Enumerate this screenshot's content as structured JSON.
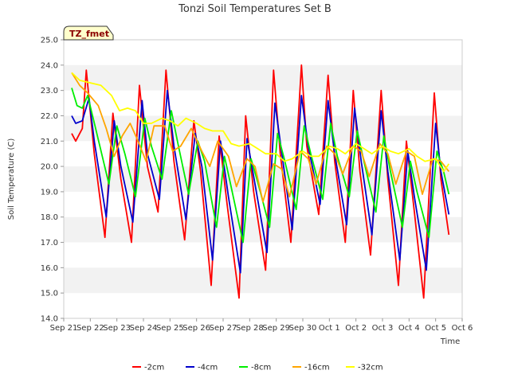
{
  "chart_data": {
    "type": "line",
    "title": "Tonzi Soil Temperatures Set B",
    "xlabel": "Time",
    "ylabel": "Soil Temperature (C)",
    "badge": "TZ_fmet",
    "ylim": [
      14.0,
      25.0
    ],
    "yticks": [
      "14.0",
      "15.0",
      "16.0",
      "17.0",
      "18.0",
      "19.0",
      "20.0",
      "21.0",
      "22.0",
      "23.0",
      "24.0",
      "25.0"
    ],
    "xticks": [
      "Sep 21",
      "Sep 22",
      "Sep 23",
      "Sep 24",
      "Sep 25",
      "Sep 26",
      "Sep 27",
      "Sep 28",
      "Sep 29",
      "Sep 30",
      "Oct 1",
      "Oct 2",
      "Oct 3",
      "Oct 4",
      "Oct 5",
      "Oct 6"
    ],
    "xrange_days": [
      0,
      15
    ],
    "grid": "horizontal bands",
    "legend_position": "bottom",
    "colors": {
      "-2cm": "#ff0000",
      "-4cm": "#0000cc",
      "-8cm": "#00ee00",
      "-16cm": "#ffa500",
      "-32cm": "#ffff00"
    },
    "series": [
      {
        "name": "-2cm",
        "color": "#ff0000",
        "x": [
          0.3,
          0.45,
          0.7,
          0.85,
          1.15,
          1.55,
          1.85,
          2.15,
          2.55,
          2.85,
          3.15,
          3.55,
          3.85,
          4.15,
          4.55,
          4.9,
          5.15,
          5.55,
          5.85,
          6.15,
          6.6,
          6.85,
          7.15,
          7.6,
          7.9,
          8.15,
          8.55,
          8.95,
          9.15,
          9.6,
          9.95,
          10.2,
          10.6,
          10.9,
          11.15,
          11.55,
          11.95,
          12.2,
          12.6,
          12.9,
          13.2,
          13.55,
          13.95,
          14.2,
          14.5
        ],
        "y": [
          21.3,
          21.0,
          21.5,
          23.8,
          20.5,
          17.2,
          22.1,
          19.5,
          17.0,
          23.2,
          20.0,
          18.2,
          23.8,
          20.2,
          17.1,
          21.8,
          19.8,
          15.3,
          21.2,
          18.5,
          14.8,
          22.0,
          19.0,
          15.9,
          23.8,
          20.5,
          17.0,
          24.0,
          20.8,
          18.1,
          23.6,
          20.2,
          17.0,
          23.0,
          19.8,
          16.5,
          23.0,
          19.5,
          15.3,
          21.0,
          18.2,
          14.8,
          22.9,
          19.5,
          17.3
        ]
      },
      {
        "name": "-4cm",
        "color": "#0000cc",
        "x": [
          0.3,
          0.45,
          0.7,
          0.95,
          1.15,
          1.6,
          1.9,
          2.15,
          2.6,
          2.95,
          3.15,
          3.6,
          3.9,
          4.15,
          4.6,
          4.95,
          5.2,
          5.6,
          5.9,
          6.2,
          6.65,
          6.9,
          7.2,
          7.65,
          7.95,
          8.2,
          8.6,
          8.95,
          9.2,
          9.65,
          9.95,
          10.2,
          10.65,
          10.95,
          11.2,
          11.6,
          11.95,
          12.2,
          12.65,
          12.95,
          13.2,
          13.65,
          14.0,
          14.2,
          14.5
        ],
        "y": [
          22.0,
          21.7,
          21.8,
          22.7,
          21.0,
          18.0,
          21.8,
          20.0,
          17.8,
          22.6,
          20.5,
          18.7,
          23.0,
          20.8,
          17.9,
          21.3,
          20.0,
          16.3,
          21.0,
          18.8,
          15.8,
          21.1,
          19.3,
          16.6,
          22.5,
          20.6,
          17.5,
          22.8,
          20.8,
          18.5,
          22.6,
          20.5,
          17.7,
          22.3,
          20.2,
          17.3,
          22.2,
          19.8,
          16.3,
          20.6,
          18.8,
          15.9,
          21.7,
          19.8,
          18.1
        ]
      },
      {
        "name": "-8cm",
        "color": "#00ee00",
        "x": [
          0.3,
          0.5,
          0.7,
          0.9,
          1.2,
          1.7,
          2.0,
          2.3,
          2.7,
          3.05,
          3.3,
          3.7,
          4.05,
          4.3,
          4.7,
          5.05,
          5.3,
          5.75,
          6.05,
          6.3,
          6.75,
          7.05,
          7.3,
          7.75,
          8.05,
          8.3,
          8.75,
          9.05,
          9.3,
          9.75,
          10.05,
          10.3,
          10.75,
          11.05,
          11.3,
          11.75,
          12.05,
          12.3,
          12.75,
          13.05,
          13.3,
          13.75,
          14.05,
          14.3,
          14.5
        ],
        "y": [
          23.1,
          22.4,
          22.3,
          22.8,
          21.5,
          19.3,
          21.6,
          20.5,
          18.8,
          21.9,
          20.8,
          19.5,
          22.2,
          20.9,
          18.9,
          21.0,
          20.2,
          17.6,
          20.4,
          19.2,
          17.0,
          20.3,
          19.4,
          17.6,
          21.3,
          20.3,
          18.3,
          21.6,
          20.5,
          18.7,
          21.7,
          20.4,
          18.8,
          21.4,
          20.2,
          18.2,
          21.2,
          19.8,
          17.6,
          20.2,
          19.0,
          17.2,
          20.6,
          19.8,
          18.9
        ]
      },
      {
        "name": "-16cm",
        "color": "#ffa500",
        "x": [
          0.3,
          0.6,
          0.9,
          1.3,
          1.6,
          1.9,
          2.2,
          2.5,
          2.8,
          3.1,
          3.4,
          3.8,
          4.1,
          4.4,
          4.8,
          5.2,
          5.5,
          5.8,
          6.2,
          6.5,
          6.9,
          7.2,
          7.5,
          7.9,
          8.2,
          8.5,
          8.9,
          9.2,
          9.5,
          9.9,
          10.2,
          10.5,
          10.9,
          11.2,
          11.5,
          11.9,
          12.2,
          12.5,
          12.9,
          13.2,
          13.5,
          13.9,
          14.2,
          14.5
        ],
        "y": [
          23.7,
          23.2,
          22.9,
          22.4,
          21.5,
          20.4,
          21.2,
          21.7,
          21.0,
          20.2,
          21.6,
          21.6,
          20.6,
          20.8,
          21.5,
          20.6,
          20.0,
          21.0,
          20.4,
          19.2,
          20.3,
          20.0,
          18.6,
          20.1,
          19.9,
          18.8,
          20.6,
          20.3,
          19.3,
          20.8,
          20.5,
          19.7,
          20.8,
          20.6,
          19.6,
          20.9,
          20.5,
          19.3,
          20.6,
          20.4,
          18.9,
          20.3,
          20.2,
          19.8
        ]
      },
      {
        "name": "-32cm",
        "color": "#ffff00",
        "x": [
          0.3,
          0.6,
          1.0,
          1.4,
          1.8,
          2.1,
          2.4,
          2.7,
          3.0,
          3.3,
          3.7,
          4.0,
          4.3,
          4.6,
          5.0,
          5.3,
          5.6,
          6.0,
          6.3,
          6.6,
          7.0,
          7.3,
          7.6,
          8.0,
          8.3,
          8.6,
          9.0,
          9.3,
          9.6,
          10.0,
          10.3,
          10.6,
          11.0,
          11.3,
          11.6,
          12.0,
          12.3,
          12.6,
          13.0,
          13.3,
          13.6,
          14.0,
          14.3,
          14.5
        ],
        "y": [
          23.7,
          23.4,
          23.3,
          23.2,
          22.8,
          22.2,
          22.3,
          22.2,
          21.7,
          21.7,
          21.9,
          21.8,
          21.6,
          21.9,
          21.7,
          21.5,
          21.4,
          21.4,
          20.9,
          20.8,
          20.9,
          20.7,
          20.5,
          20.5,
          20.2,
          20.3,
          20.6,
          20.4,
          20.4,
          20.8,
          20.7,
          20.5,
          20.9,
          20.7,
          20.5,
          20.8,
          20.6,
          20.5,
          20.7,
          20.4,
          20.2,
          20.3,
          19.8,
          20.1
        ]
      }
    ]
  }
}
